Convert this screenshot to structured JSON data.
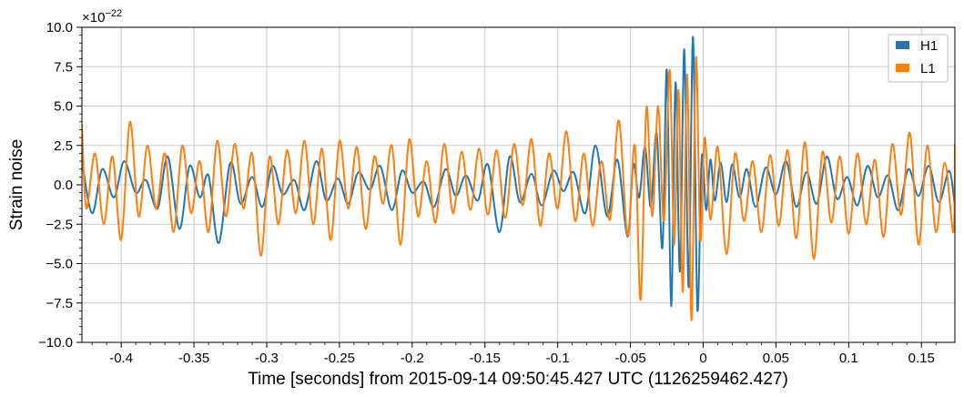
{
  "chart_data": {
    "type": "line",
    "title": "",
    "xlabel": "Time [seconds] from 2015-09-14 09:50:45.427 UTC (1126259462.427)",
    "ylabel": "Strain noise",
    "y_offset_label": "×10",
    "y_offset_exponent": "−22",
    "xlim": [
      -0.427,
      0.173
    ],
    "ylim": [
      -10.0,
      10.0
    ],
    "grid": true,
    "legend_position": "top-right",
    "x_ticks": [
      {
        "value": -0.4,
        "label": "-0.4"
      },
      {
        "value": -0.35,
        "label": "-0.35"
      },
      {
        "value": -0.3,
        "label": "-0.3"
      },
      {
        "value": -0.25,
        "label": "-0.25"
      },
      {
        "value": -0.2,
        "label": "-0.2"
      },
      {
        "value": -0.15,
        "label": "-0.15"
      },
      {
        "value": -0.1,
        "label": "-0.1"
      },
      {
        "value": -0.05,
        "label": "-0.05"
      },
      {
        "value": 0,
        "label": "0"
      },
      {
        "value": 0.05,
        "label": "0.05"
      },
      {
        "value": 0.1,
        "label": "0.1"
      },
      {
        "value": 0.15,
        "label": "0.15"
      }
    ],
    "y_ticks": [
      {
        "value": 10.0,
        "label": "10.0"
      },
      {
        "value": 7.5,
        "label": "7.5"
      },
      {
        "value": 5.0,
        "label": "5.0"
      },
      {
        "value": 2.5,
        "label": "2.5"
      },
      {
        "value": 0.0,
        "label": "0.0"
      },
      {
        "value": -2.5,
        "label": "−2.5"
      },
      {
        "value": -5.0,
        "label": "−5.0"
      },
      {
        "value": -7.5,
        "label": "−7.5"
      },
      {
        "value": -10.0,
        "label": "−10.0"
      }
    ],
    "series": [
      {
        "name": "H1",
        "color": "#1f77b4",
        "x": [
          -0.427,
          -0.42,
          -0.413,
          -0.405,
          -0.398,
          -0.39,
          -0.383,
          -0.375,
          -0.368,
          -0.36,
          -0.353,
          -0.346,
          -0.34,
          -0.333,
          -0.325,
          -0.318,
          -0.31,
          -0.303,
          -0.296,
          -0.289,
          -0.281,
          -0.274,
          -0.266,
          -0.259,
          -0.251,
          -0.244,
          -0.237,
          -0.229,
          -0.222,
          -0.214,
          -0.207,
          -0.2,
          -0.192,
          -0.185,
          -0.177,
          -0.17,
          -0.163,
          -0.155,
          -0.148,
          -0.14,
          -0.133,
          -0.126,
          -0.118,
          -0.111,
          -0.103,
          -0.096,
          -0.089,
          -0.081,
          -0.074,
          -0.066,
          -0.059,
          -0.052,
          -0.048,
          -0.044,
          -0.04,
          -0.036,
          -0.032,
          -0.028,
          -0.025,
          -0.022,
          -0.019,
          -0.016,
          -0.013,
          -0.01,
          -0.007,
          -0.004,
          -0.001,
          0.002,
          0.005,
          0.008,
          0.012,
          0.016,
          0.02,
          0.025,
          0.03,
          0.036,
          0.043,
          0.05,
          0.057,
          0.064,
          0.071,
          0.078,
          0.085,
          0.092,
          0.099,
          0.106,
          0.113,
          0.12,
          0.127,
          0.134,
          0.141,
          0.148,
          0.155,
          0.162,
          0.169,
          0.173
        ],
        "y": [
          1.5,
          -1.8,
          1.0,
          -0.8,
          1.5,
          -0.5,
          0.3,
          -1.5,
          1.8,
          -2.8,
          1.2,
          -0.8,
          0.6,
          -3.7,
          1.4,
          -1.2,
          0.5,
          -1.4,
          1.2,
          -0.6,
          0.3,
          -1.6,
          1.5,
          -1.0,
          0.4,
          -1.2,
          0.8,
          -0.3,
          1.2,
          -1.6,
          0.9,
          -0.5,
          0.2,
          -1.4,
          1.0,
          -0.7,
          0.6,
          -1.0,
          1.3,
          -3.0,
          1.8,
          -1.1,
          0.7,
          -1.3,
          0.9,
          -0.4,
          0.8,
          -1.8,
          2.5,
          -2.0,
          1.6,
          -3.3,
          1.3,
          -0.8,
          2.4,
          -1.4,
          3.3,
          -4.0,
          7.3,
          -7.7,
          6.5,
          -5.5,
          8.6,
          -6.5,
          9.4,
          -7.9,
          1.8,
          -1.6,
          1.6,
          -1.0,
          1.4,
          -1.1,
          1.3,
          -0.8,
          1.0,
          -1.4,
          1.1,
          -0.6,
          1.5,
          -1.4,
          0.8,
          -1.2,
          1.8,
          -0.9,
          0.5,
          -1.3,
          1.2,
          -0.8,
          0.6,
          -1.6,
          1.0,
          -0.7,
          1.2,
          -1.1,
          0.9,
          -1.4
        ]
      },
      {
        "name": "L1",
        "color": "#ff7f0e",
        "x": [
          -0.427,
          -0.424,
          -0.418,
          -0.412,
          -0.406,
          -0.4,
          -0.394,
          -0.388,
          -0.382,
          -0.376,
          -0.37,
          -0.364,
          -0.358,
          -0.352,
          -0.346,
          -0.34,
          -0.334,
          -0.328,
          -0.322,
          -0.316,
          -0.31,
          -0.304,
          -0.298,
          -0.292,
          -0.286,
          -0.28,
          -0.274,
          -0.268,
          -0.262,
          -0.256,
          -0.25,
          -0.244,
          -0.238,
          -0.232,
          -0.226,
          -0.22,
          -0.214,
          -0.208,
          -0.202,
          -0.196,
          -0.19,
          -0.184,
          -0.178,
          -0.172,
          -0.166,
          -0.16,
          -0.154,
          -0.148,
          -0.142,
          -0.136,
          -0.13,
          -0.124,
          -0.118,
          -0.112,
          -0.106,
          -0.1,
          -0.094,
          -0.088,
          -0.082,
          -0.076,
          -0.07,
          -0.064,
          -0.058,
          -0.052,
          -0.047,
          -0.043,
          -0.039,
          -0.035,
          -0.031,
          -0.027,
          -0.023,
          -0.02,
          -0.017,
          -0.014,
          -0.011,
          -0.008,
          -0.005,
          -0.002,
          0.001,
          0.005,
          0.01,
          0.016,
          0.022,
          0.028,
          0.034,
          0.04,
          0.046,
          0.052,
          0.058,
          0.064,
          0.07,
          0.076,
          0.082,
          0.088,
          0.094,
          0.1,
          0.106,
          0.112,
          0.118,
          0.124,
          0.13,
          0.136,
          0.142,
          0.148,
          0.154,
          0.16,
          0.166,
          0.172,
          0.173
        ],
        "y": [
          3.8,
          -1.5,
          2.0,
          -2.5,
          1.8,
          -3.5,
          4.0,
          -2.0,
          2.5,
          -1.5,
          2.0,
          -3.0,
          2.5,
          -1.8,
          1.5,
          -3.0,
          2.8,
          -2.0,
          2.6,
          -1.5,
          2.0,
          -4.5,
          1.8,
          -2.5,
          2.2,
          -1.8,
          2.8,
          -2.5,
          2.3,
          -3.5,
          2.8,
          -1.5,
          2.4,
          -2.8,
          1.8,
          -1.2,
          2.5,
          -3.8,
          2.9,
          -2.0,
          1.5,
          -2.4,
          2.6,
          -1.8,
          2.1,
          -1.6,
          2.3,
          -1.9,
          2.2,
          -2.1,
          2.6,
          -1.3,
          2.9,
          -2.6,
          2.0,
          -1.5,
          3.4,
          -2.3,
          2.0,
          -2.6,
          1.5,
          -2.2,
          4.1,
          -3.2,
          2.5,
          -7.3,
          4.9,
          -2.0,
          5.0,
          -2.3,
          7.3,
          -3.8,
          6.0,
          -6.8,
          7.0,
          -8.6,
          8.1,
          -3.5,
          3.0,
          -2.2,
          2.4,
          -4.4,
          2.0,
          -2.3,
          1.5,
          -3.0,
          1.9,
          -2.6,
          2.2,
          -3.4,
          2.7,
          -4.7,
          2.1,
          -2.4,
          1.8,
          -3.1,
          2.0,
          -2.5,
          1.6,
          -3.3,
          2.6,
          -1.9,
          3.3,
          -3.8,
          2.5,
          -3.0,
          1.4,
          -3.0,
          2.6
        ]
      }
    ]
  }
}
